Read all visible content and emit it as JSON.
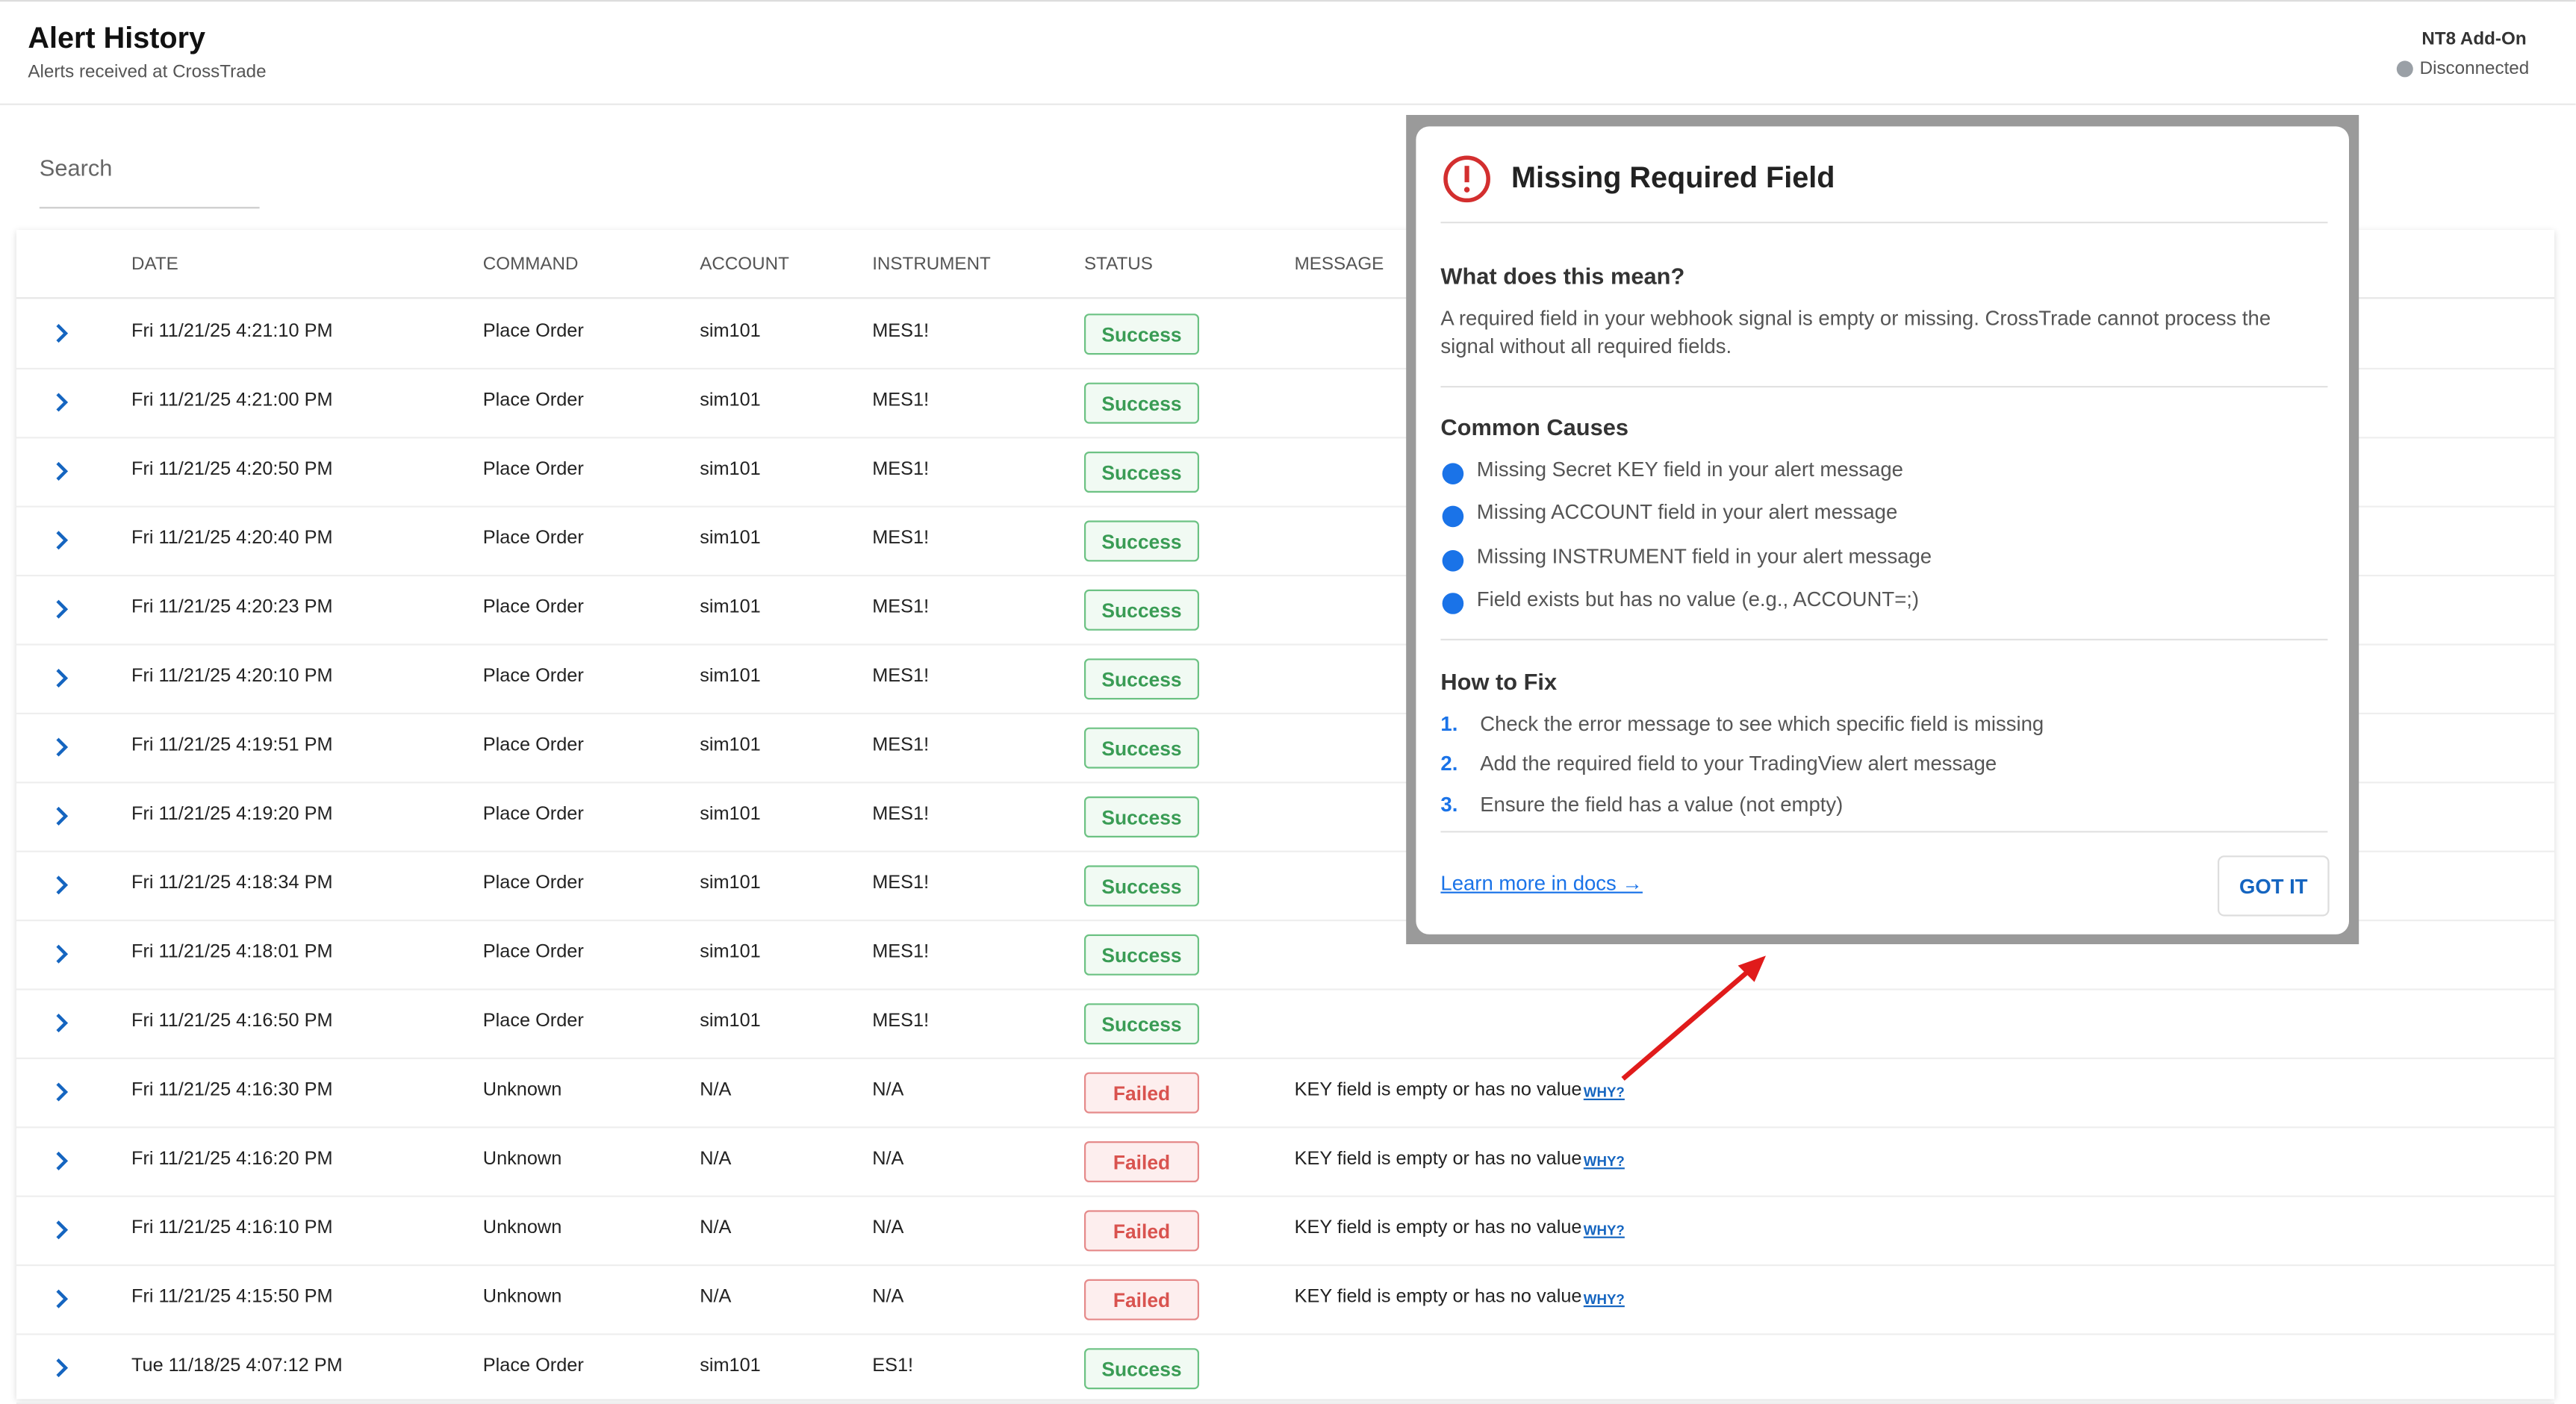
{
  "header": {
    "title": "Alert History",
    "subtitle": "Alerts received at CrossTrade",
    "addon": "NT8 Add-On",
    "status": "Disconnected"
  },
  "search": {
    "placeholder": "Search"
  },
  "table": {
    "columns": [
      "DATE",
      "COMMAND",
      "ACCOUNT",
      "INSTRUMENT",
      "STATUS",
      "MESSAGE"
    ],
    "rows": [
      {
        "date": "Fri 11/21/25 4:21:10 PM",
        "command": "Place Order",
        "account": "sim101",
        "instrument": "MES1!",
        "status": "Success"
      },
      {
        "date": "Fri 11/21/25 4:21:00 PM",
        "command": "Place Order",
        "account": "sim101",
        "instrument": "MES1!",
        "status": "Success"
      },
      {
        "date": "Fri 11/21/25 4:20:50 PM",
        "command": "Place Order",
        "account": "sim101",
        "instrument": "MES1!",
        "status": "Success"
      },
      {
        "date": "Fri 11/21/25 4:20:40 PM",
        "command": "Place Order",
        "account": "sim101",
        "instrument": "MES1!",
        "status": "Success"
      },
      {
        "date": "Fri 11/21/25 4:20:23 PM",
        "command": "Place Order",
        "account": "sim101",
        "instrument": "MES1!",
        "status": "Success"
      },
      {
        "date": "Fri 11/21/25 4:20:10 PM",
        "command": "Place Order",
        "account": "sim101",
        "instrument": "MES1!",
        "status": "Success"
      },
      {
        "date": "Fri 11/21/25 4:19:51 PM",
        "command": "Place Order",
        "account": "sim101",
        "instrument": "MES1!",
        "status": "Success"
      },
      {
        "date": "Fri 11/21/25 4:19:20 PM",
        "command": "Place Order",
        "account": "sim101",
        "instrument": "MES1!",
        "status": "Success"
      },
      {
        "date": "Fri 11/21/25 4:18:34 PM",
        "command": "Place Order",
        "account": "sim101",
        "instrument": "MES1!",
        "status": "Success"
      },
      {
        "date": "Fri 11/21/25 4:18:01 PM",
        "command": "Place Order",
        "account": "sim101",
        "instrument": "MES1!",
        "status": "Success"
      },
      {
        "date": "Fri 11/21/25 4:16:50 PM",
        "command": "Place Order",
        "account": "sim101",
        "instrument": "MES1!",
        "status": "Success"
      },
      {
        "date": "Fri 11/21/25 4:16:30 PM",
        "command": "Unknown",
        "account": "N/A",
        "instrument": "N/A",
        "status": "Failed",
        "message": "KEY field is empty or has no value",
        "link": "WHY?"
      },
      {
        "date": "Fri 11/21/25 4:16:20 PM",
        "command": "Unknown",
        "account": "N/A",
        "instrument": "N/A",
        "status": "Failed",
        "message": "KEY field is empty or has no value",
        "link": "WHY?"
      },
      {
        "date": "Fri 11/21/25 4:16:10 PM",
        "command": "Unknown",
        "account": "N/A",
        "instrument": "N/A",
        "status": "Failed",
        "message": "KEY field is empty or has no value",
        "link": "WHY?"
      },
      {
        "date": "Fri 11/21/25 4:15:50 PM",
        "command": "Unknown",
        "account": "N/A",
        "instrument": "N/A",
        "status": "Failed",
        "message": "KEY field is empty or has no value",
        "link": "WHY?"
      },
      {
        "date": "Tue 11/18/25 4:07:12 PM",
        "command": "Place Order",
        "account": "sim101",
        "instrument": "ES1!",
        "status": "Success"
      }
    ]
  },
  "modal": {
    "title": "Missing Required Field",
    "meaning": {
      "heading": "What does this mean?",
      "text": "A required field in your webhook signal is empty or missing. CrossTrade cannot process the signal without all required fields."
    },
    "causes": {
      "heading": "Common Causes",
      "items": [
        "Missing Secret KEY field in your alert message",
        "Missing ACCOUNT field in your alert message",
        "Missing INSTRUMENT field in your alert message",
        "Field exists but has no value (e.g., ACCOUNT=;)"
      ]
    },
    "fix": {
      "heading": "How to Fix",
      "items": [
        {
          "num": "1.",
          "text": "Check the error message to see which specific field is missing"
        },
        {
          "num": "2.",
          "text": "Add the required field to your TradingView alert message"
        },
        {
          "num": "3.",
          "text": "Ensure the field has a value (not empty)"
        }
      ]
    },
    "link": "Learn more in docs →",
    "button": "GOT IT"
  }
}
